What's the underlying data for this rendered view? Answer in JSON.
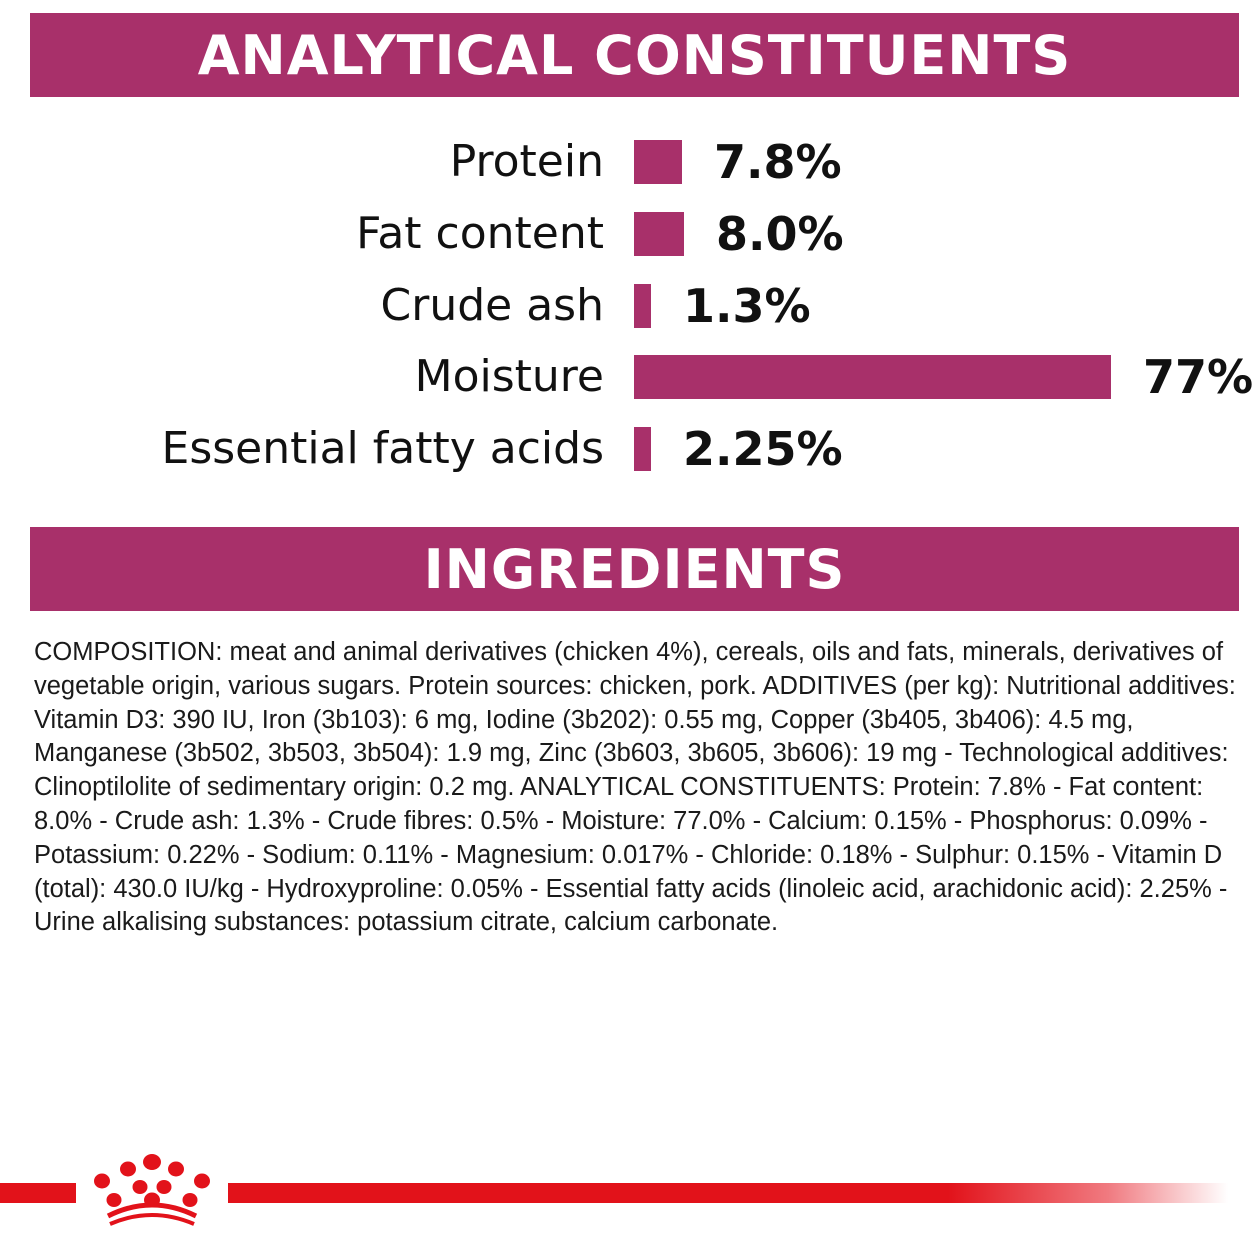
{
  "colors": {
    "brand": "#a8306a",
    "footer_red": "#e2121a"
  },
  "analytical": {
    "heading": "ANALYTICAL CONSTITUENTS",
    "rows": [
      {
        "label": "Protein",
        "value": "7.8%",
        "fraction": 0.078
      },
      {
        "label": "Fat content",
        "value": "8.0%",
        "fraction": 0.08
      },
      {
        "label": "Crude ash",
        "value": "1.3%",
        "fraction": 0.013
      },
      {
        "label": "Moisture",
        "value": "77%",
        "fraction": 0.77
      },
      {
        "label": "Essential fatty acids",
        "value": "2.25%",
        "fraction": 0.0225
      }
    ]
  },
  "ingredients": {
    "heading": "INGREDIENTS",
    "composition": "COMPOSITION: meat and animal derivatives (chicken 4%), cereals, oils and fats, minerals, derivatives of vegetable origin, various sugars. Protein sources: chicken, pork. ADDITIVES (per kg): Nutritional additives: Vitamin D3: 390 IU, Iron (3b103): 6 mg, Iodine (3b202): 0.55 mg, Copper (3b405, 3b406): 4.5 mg, Manganese (3b502, 3b503, 3b504): 1.9 mg, Zinc (3b603, 3b605, 3b606): 19 mg - Technological additives: Clinoptilolite of sedimentary origin: 0.2 mg. ANALYTICAL CONSTITUENTS: Protein: 7.8% - Fat content: 8.0% - Crude ash: 1.3% - Crude fibres: 0.5% - Moisture: 77.0% - Calcium: 0.15% - Phosphorus: 0.09% - Potassium: 0.22% - Sodium: 0.11% - Magnesium: 0.017% - Chloride: 0.18% - Sulphur: 0.15% - Vitamin D (total): 430.0 IU/kg - Hydroxyproline: 0.05% - Essential fatty acids (linoleic acid, arachidonic acid): 2.25% - Urine alkalising substances: potassium citrate, calcium carbonate."
  },
  "footer": {
    "logo_icon": "crown-icon"
  }
}
